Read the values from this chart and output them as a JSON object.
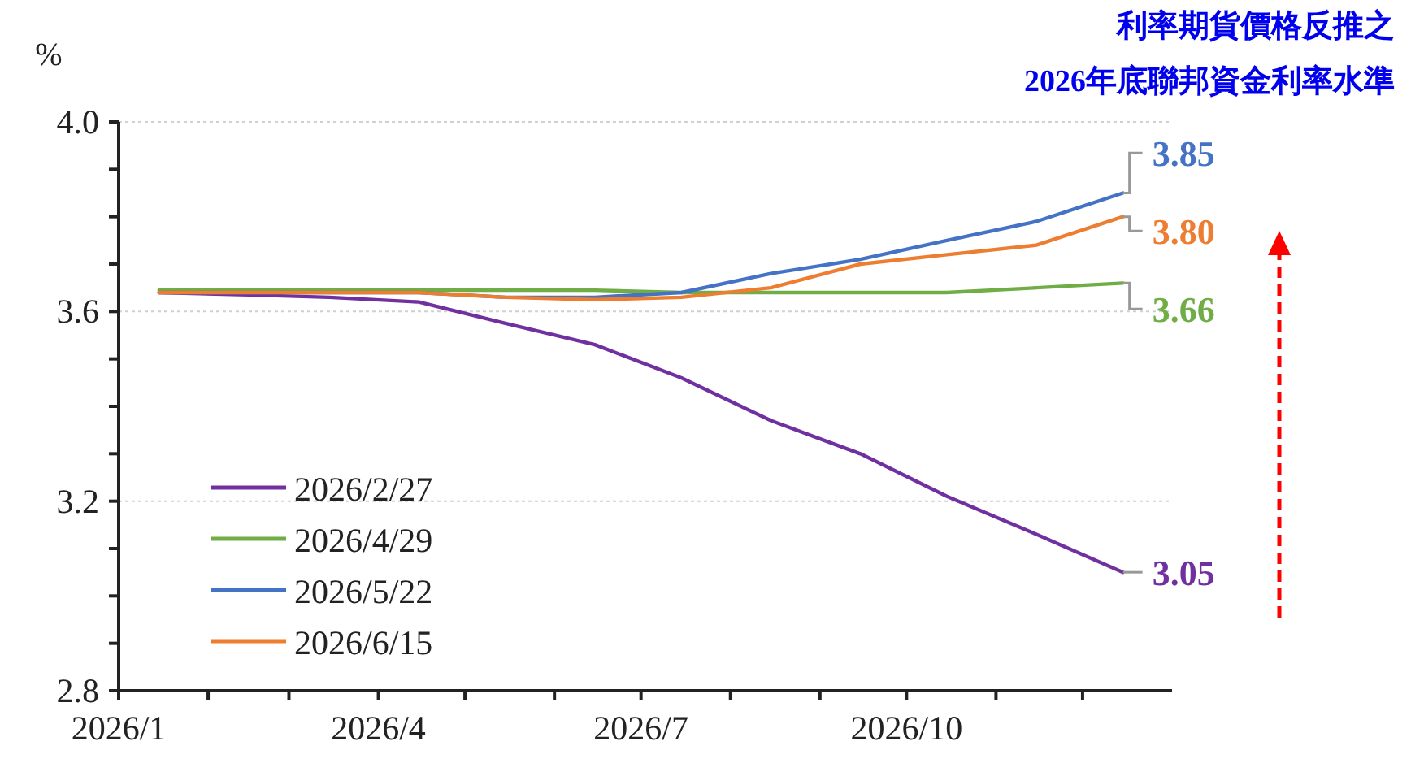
{
  "chart_data": {
    "type": "line",
    "title": "利率期貨價格反推之",
    "subtitle": "2026年底聯邦資金利率水準",
    "ylabel": "%",
    "x": [
      "2026-01-15",
      "2026-02-15",
      "2026-03-15",
      "2026-04-15",
      "2026-05-15",
      "2026-06-15",
      "2026-07-15",
      "2026-08-15",
      "2026-09-15",
      "2026-10-15",
      "2026-11-15",
      "2026-12-15"
    ],
    "series": [
      {
        "name": "2026/2/27",
        "color": "#7030a0",
        "values": [
          3.64,
          3.635,
          3.63,
          3.62,
          3.575,
          3.53,
          3.46,
          3.37,
          3.3,
          3.21,
          3.13,
          3.05
        ]
      },
      {
        "name": "2026/4/29",
        "color": "#70ad47",
        "values": [
          3.645,
          3.645,
          3.645,
          3.645,
          3.645,
          3.645,
          3.64,
          3.64,
          3.64,
          3.64,
          3.65,
          3.66
        ]
      },
      {
        "name": "2026/5/22",
        "color": "#4472c4",
        "values": [
          3.64,
          3.64,
          3.64,
          3.64,
          3.63,
          3.63,
          3.64,
          3.68,
          3.71,
          3.75,
          3.79,
          3.85
        ]
      },
      {
        "name": "2026/6/15",
        "color": "#ed7d31",
        "values": [
          3.64,
          3.64,
          3.64,
          3.64,
          3.63,
          3.625,
          3.63,
          3.65,
          3.7,
          3.72,
          3.74,
          3.8
        ]
      }
    ],
    "annotations": [
      {
        "text": "3.85",
        "x": "2026-12-15",
        "y": 3.85
      },
      {
        "text": "3.80",
        "x": "2026-12-15",
        "y": 3.8
      },
      {
        "text": "3.66",
        "x": "2026-12-15",
        "y": 3.66
      },
      {
        "text": "3.05",
        "x": "2026-12-15",
        "y": 3.05
      }
    ],
    "xlim": [
      "2026-01-01",
      "2027-01-01"
    ],
    "xticks": [
      {
        "value": "2026-01-01",
        "label": "2026/1"
      },
      {
        "value": "2026-02-01",
        "label": null
      },
      {
        "value": "2026-03-01",
        "label": null
      },
      {
        "value": "2026-04-01",
        "label": "2026/4"
      },
      {
        "value": "2026-05-01",
        "label": null
      },
      {
        "value": "2026-06-01",
        "label": null
      },
      {
        "value": "2026-07-01",
        "label": "2026/7"
      },
      {
        "value": "2026-08-01",
        "label": null
      },
      {
        "value": "2026-09-01",
        "label": null
      },
      {
        "value": "2026-10-01",
        "label": "2026/10"
      },
      {
        "value": "2026-11-01",
        "label": null
      },
      {
        "value": "2026-12-01",
        "label": null
      }
    ],
    "ylim": [
      2.8,
      4.0
    ],
    "yticks": [
      2.8,
      {
        "value": 2.9,
        "label": null
      },
      {
        "value": 3.0,
        "label": null
      },
      {
        "value": 3.1,
        "label": null
      },
      3.2,
      {
        "value": 3.3,
        "label": null
      },
      {
        "value": 3.4,
        "label": null
      },
      {
        "value": 3.5,
        "label": null
      },
      3.6,
      {
        "value": 3.7,
        "label": null
      },
      {
        "value": 3.8,
        "label": null
      },
      {
        "value": 3.9,
        "label": null
      },
      {
        "value": 4,
        "label": "4.0"
      }
    ],
    "grid": "y",
    "legend": "bottom left",
    "marker": "none",
    "line_style": "solid"
  }
}
